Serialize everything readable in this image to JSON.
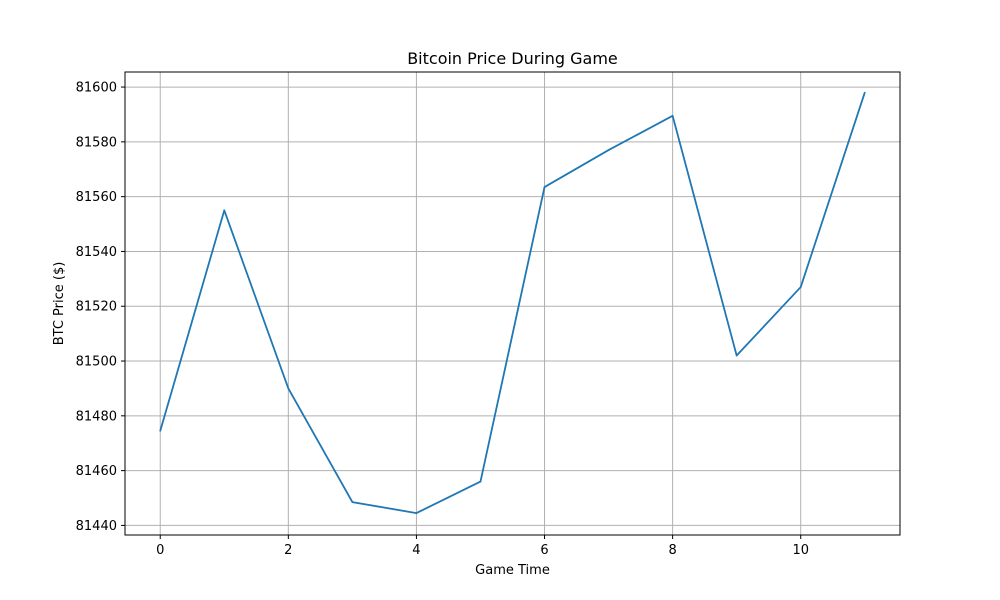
{
  "chart_data": {
    "type": "line",
    "title": "Bitcoin Price During Game",
    "xlabel": "Game Time",
    "ylabel": "BTC Price ($)",
    "x": [
      0,
      1,
      2,
      3,
      4,
      5,
      6,
      7,
      8,
      9,
      10,
      11
    ],
    "series": [
      {
        "values": [
          81474.5,
          81555,
          81490,
          81448.5,
          81444.5,
          81456,
          81563.5,
          81577,
          81589.5,
          81502,
          81527,
          81598
        ]
      }
    ],
    "xlim": [
      -0.55,
      11.55
    ],
    "ylim": [
      81436.5,
      81605.5
    ],
    "xticks": [
      0,
      2,
      4,
      6,
      8,
      10
    ],
    "yticks": [
      81440,
      81460,
      81480,
      81500,
      81520,
      81540,
      81560,
      81580,
      81600
    ],
    "grid": true,
    "line_color": "#1f77b4",
    "grid_color": "#b0b0b0"
  }
}
